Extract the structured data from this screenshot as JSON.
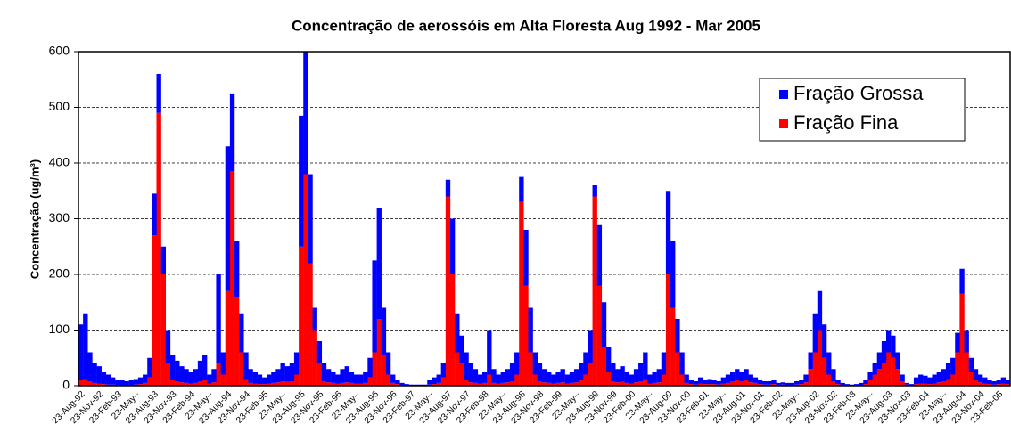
{
  "chart_data": {
    "type": "stacked_bar",
    "title": "Concentração de aerossóis em Alta Floresta  Aug 1992 - Mar 2005",
    "y_label": "Concentração  (ug/m³)",
    "categories": [
      "23-Aug-92",
      null,
      null,
      null,
      "23-Nov-92",
      null,
      null,
      null,
      "23-Feb-93",
      null,
      null,
      null,
      "23-May-·",
      null,
      null,
      null,
      "23-Aug-93",
      null,
      null,
      null,
      "23-Nov-93",
      null,
      null,
      null,
      "23-Feb-94",
      null,
      null,
      null,
      "23-May-·",
      null,
      null,
      null,
      "23-Aug-94",
      null,
      null,
      null,
      "23-Nov-94",
      null,
      null,
      null,
      "23-Feb-95",
      null,
      null,
      null,
      "23-May-·",
      null,
      null,
      null,
      "23-Aug-95",
      null,
      null,
      null,
      "23-Nov-95",
      null,
      null,
      null,
      "23-Feb-96",
      null,
      null,
      null,
      "23-May-·",
      null,
      null,
      null,
      "23-Aug-96",
      null,
      null,
      null,
      "23-Nov-96",
      null,
      null,
      null,
      "23-Feb-97",
      null,
      null,
      null,
      "23-May-·",
      null,
      null,
      null,
      "23-Aug-97",
      null,
      null,
      null,
      "23-Nov-97",
      null,
      null,
      null,
      "23-Feb-98",
      null,
      null,
      null,
      "23-May-·",
      null,
      null,
      null,
      "23-Aug-98",
      null,
      null,
      null,
      "23-Nov-98",
      null,
      null,
      null,
      "23-Feb-99",
      null,
      null,
      null,
      "23-May-·",
      null,
      null,
      null,
      "23-Aug-99",
      null,
      null,
      null,
      "23-Nov-99",
      null,
      null,
      null,
      "23-Feb-00",
      null,
      null,
      null,
      "23-May-·",
      null,
      null,
      null,
      "23-Aug-00",
      null,
      null,
      null,
      "23-Nov-00",
      null,
      null,
      null,
      "23-Feb-01",
      null,
      null,
      null,
      "23-May-·",
      null,
      null,
      null,
      "23-Aug-01",
      null,
      null,
      null,
      "23-Nov-01",
      null,
      null,
      null,
      "23-Feb-02",
      null,
      null,
      null,
      "23-May-·",
      null,
      null,
      null,
      "23-Aug-02",
      null,
      null,
      null,
      "23-Nov-02",
      null,
      null,
      null,
      "23-Feb-03",
      null,
      null,
      null,
      "23-May-·",
      null,
      null,
      null,
      "23-Aug-03",
      null,
      null,
      null,
      "23-Nov-03",
      null,
      null,
      null,
      "23-Feb-04",
      null,
      null,
      null,
      "23-May-·",
      null,
      null,
      null,
      "23-Aug-04",
      null,
      null,
      null,
      "23-Nov-04",
      null,
      null,
      null,
      "23-Feb-05",
      null,
      null
    ],
    "series": [
      {
        "name": "Fração Fina",
        "color": "#ff0000",
        "values": [
          10,
          12,
          8,
          5,
          4,
          3,
          2,
          2,
          1,
          1,
          1,
          1,
          2,
          3,
          5,
          15,
          270,
          490,
          200,
          40,
          10,
          8,
          6,
          5,
          4,
          5,
          8,
          10,
          4,
          6,
          40,
          20,
          170,
          385,
          160,
          60,
          12,
          5,
          4,
          3,
          3,
          4,
          5,
          6,
          8,
          7,
          8,
          20,
          250,
          380,
          220,
          100,
          40,
          8,
          6,
          5,
          4,
          5,
          6,
          5,
          4,
          4,
          5,
          15,
          60,
          120,
          55,
          20,
          5,
          3,
          1,
          1,
          0,
          0,
          0,
          0,
          2,
          3,
          5,
          15,
          340,
          200,
          60,
          40,
          10,
          6,
          5,
          4,
          5,
          20,
          5,
          4,
          5,
          6,
          8,
          20,
          330,
          180,
          60,
          20,
          8,
          6,
          5,
          4,
          5,
          6,
          4,
          5,
          6,
          10,
          20,
          40,
          340,
          180,
          70,
          25,
          8,
          6,
          7,
          5,
          4,
          6,
          8,
          12,
          4,
          5,
          6,
          20,
          200,
          140,
          60,
          20,
          5,
          3,
          2,
          4,
          3,
          3,
          3,
          2,
          4,
          5,
          8,
          10,
          8,
          10,
          6,
          5,
          3,
          2,
          2,
          3,
          1,
          2,
          1,
          1,
          2,
          3,
          6,
          30,
          60,
          100,
          50,
          20,
          8,
          3,
          1,
          1,
          0,
          1,
          1,
          3,
          10,
          20,
          30,
          40,
          60,
          50,
          30,
          8,
          2,
          1,
          3,
          4,
          4,
          3,
          4,
          6,
          8,
          12,
          20,
          60,
          165,
          60,
          25,
          10,
          6,
          4,
          3,
          2,
          3,
          4,
          3
        ]
      },
      {
        "name": "Fração Grossa",
        "color": "#0000ff",
        "values": [
          100,
          118,
          52,
          35,
          31,
          22,
          18,
          13,
          9,
          9,
          7,
          9,
          10,
          12,
          15,
          35,
          75,
          70,
          50,
          60,
          45,
          37,
          29,
          25,
          21,
          25,
          37,
          45,
          16,
          24,
          160,
          40,
          260,
          140,
          100,
          70,
          48,
          25,
          21,
          17,
          12,
          16,
          20,
          24,
          32,
          28,
          32,
          40,
          235,
          220,
          160,
          40,
          40,
          32,
          24,
          20,
          16,
          25,
          29,
          20,
          16,
          16,
          20,
          35,
          165,
          200,
          85,
          40,
          15,
          7,
          4,
          2,
          2,
          2,
          2,
          2,
          8,
          12,
          15,
          25,
          30,
          100,
          70,
          50,
          50,
          34,
          25,
          16,
          20,
          80,
          25,
          16,
          20,
          24,
          32,
          40,
          45,
          100,
          80,
          40,
          32,
          24,
          20,
          16,
          20,
          24,
          16,
          20,
          24,
          30,
          40,
          60,
          20,
          110,
          80,
          45,
          32,
          24,
          28,
          20,
          16,
          24,
          32,
          48,
          16,
          20,
          24,
          40,
          150,
          120,
          60,
          40,
          15,
          7,
          6,
          11,
          7,
          9,
          7,
          6,
          11,
          15,
          17,
          20,
          17,
          20,
          14,
          10,
          7,
          6,
          6,
          7,
          4,
          4,
          4,
          4,
          6,
          7,
          14,
          30,
          70,
          70,
          60,
          40,
          22,
          7,
          4,
          2,
          2,
          2,
          4,
          7,
          15,
          20,
          30,
          40,
          40,
          40,
          30,
          12,
          3,
          2,
          12,
          16,
          14,
          12,
          16,
          19,
          22,
          28,
          30,
          35,
          45,
          40,
          25,
          20,
          14,
          11,
          7,
          6,
          7,
          11,
          7
        ]
      }
    ],
    "ylim": [
      0,
      600
    ],
    "yticks": [
      0,
      100,
      200,
      300,
      400,
      500,
      600
    ],
    "grid": true,
    "legend": "top-right"
  }
}
